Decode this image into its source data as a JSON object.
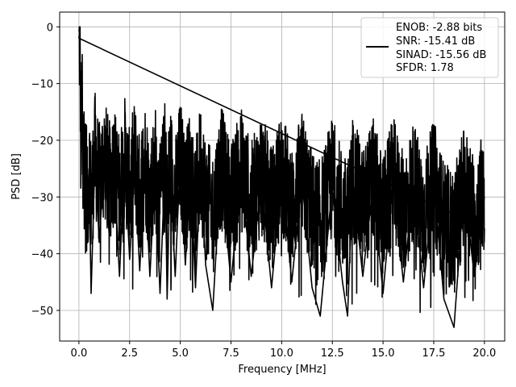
{
  "chart_data": {
    "type": "line",
    "title": "",
    "xlabel": "Frequency [MHz]",
    "ylabel": "PSD [dB]",
    "xlim": [
      -0.95,
      21.0
    ],
    "ylim": [
      -55.4,
      2.6
    ],
    "grid": true,
    "legend_position": "top-right",
    "x_ticks": [
      0,
      2.5,
      5,
      7.5,
      10,
      12.5,
      15,
      17.5,
      20
    ],
    "x_tick_labels": [
      "0.0",
      "2.5",
      "5.0",
      "7.5",
      "10.0",
      "12.5",
      "15.0",
      "17.5",
      "20.0"
    ],
    "y_ticks": [
      0,
      -10,
      -20,
      -30,
      -40,
      -50
    ],
    "y_tick_labels": [
      "0",
      "−10",
      "−20",
      "−30",
      "−40",
      "−50"
    ],
    "series": [
      {
        "name": "ENOB: -2.88 bits",
        "color": "#000000",
        "x": [
          0,
          0.05,
          0.1,
          0.15,
          0.2,
          0.25,
          0.3,
          0.35,
          0.4,
          0.5,
          0.6,
          0.8,
          1.0,
          1.25,
          1.5,
          1.75,
          2.0,
          2.25,
          2.5,
          2.75,
          3.0,
          3.25,
          3.5,
          3.75,
          4.0,
          4.25,
          4.35,
          4.5,
          4.75,
          5.0,
          5.25,
          5.5,
          5.75,
          6.0,
          6.25,
          6.6,
          7.0,
          7.5,
          8.0,
          8.5,
          9.0,
          9.5,
          10.0,
          10.5,
          11.0,
          11.5,
          11.9,
          12.5,
          13.0,
          13.25,
          13.5,
          14.0,
          14.5,
          15.0,
          15.5,
          16.0,
          16.5,
          17.0,
          17.5,
          18.0,
          18.5,
          19.0,
          19.5,
          20.0
        ],
        "y": [
          -2,
          0,
          -24,
          -8,
          -32,
          -15,
          -28,
          -20,
          -35,
          -25,
          -47,
          -22,
          -38,
          -24,
          -37,
          -26,
          -44,
          -23,
          -41,
          -25,
          -43,
          -24,
          -44,
          -26,
          -47,
          -24,
          -48,
          -25,
          -44,
          -23,
          -42,
          -25,
          -46,
          -24,
          -42,
          -50,
          -25,
          -45,
          -26,
          -44,
          -27,
          -46,
          -26,
          -45,
          -27,
          -46,
          -51,
          -28,
          -45,
          -51,
          -27,
          -44,
          -28,
          -47,
          -27,
          -45,
          -28,
          -46,
          -27,
          -48,
          -53,
          -28,
          -44,
          -30
        ]
      }
    ],
    "legend_entries": [
      "ENOB: -2.88 bits",
      "SNR: -15.41 dB",
      "SINAD: -15.56 dB",
      "SFDR: 1.78"
    ]
  }
}
